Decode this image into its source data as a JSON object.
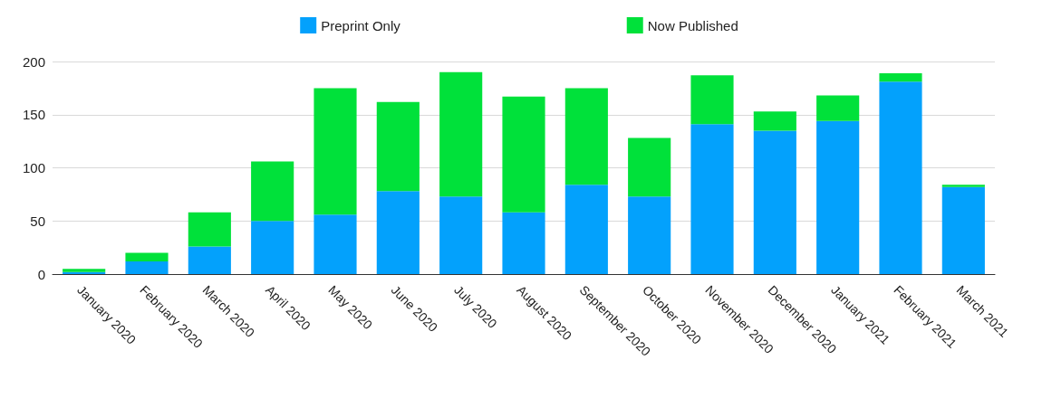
{
  "chart_data": {
    "type": "bar",
    "stacked": true,
    "categories": [
      "January 2020",
      "February 2020",
      "March 2020",
      "April 2020",
      "May 2020",
      "June 2020",
      "July 2020",
      "August 2020",
      "September 2020",
      "October 2020",
      "November 2020",
      "December 2020",
      "January 2021",
      "February 2021",
      "March 2021"
    ],
    "series": [
      {
        "name": "Preprint Only",
        "color": "#03a1fc",
        "values": [
          2,
          12,
          26,
          50,
          56,
          78,
          73,
          58,
          84,
          73,
          141,
          135,
          144,
          181,
          82
        ]
      },
      {
        "name": "Now Published",
        "color": "#00e13a",
        "values": [
          3,
          8,
          32,
          56,
          119,
          84,
          117,
          109,
          91,
          55,
          46,
          18,
          24,
          8,
          2
        ]
      }
    ],
    "ylim": [
      0,
      200
    ],
    "yticks": [
      0,
      50,
      100,
      150,
      200
    ],
    "grid": "y",
    "legend": "top"
  }
}
